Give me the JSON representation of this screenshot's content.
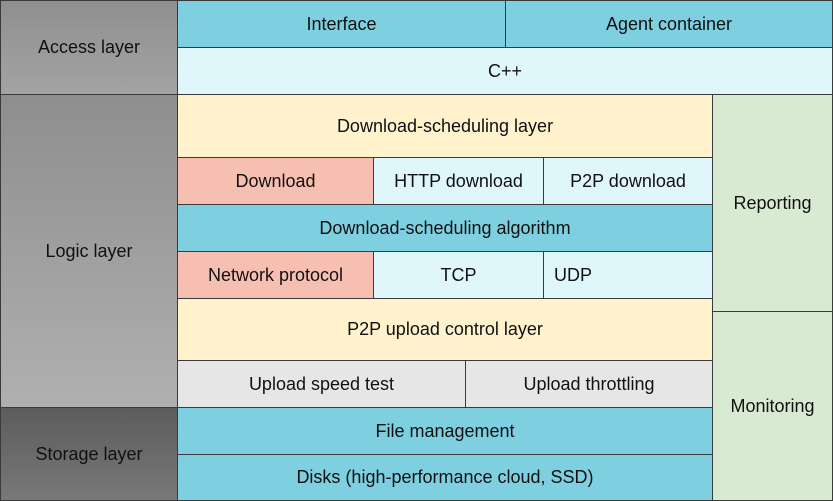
{
  "layers": [
    "Access layer",
    "Logic layer",
    "Storage layer"
  ],
  "blocks": {
    "interface": "Interface",
    "agent_container": "Agent container",
    "cpp": "C++",
    "download_scheduling_layer": "Download-scheduling layer",
    "download": "Download",
    "http_download": "HTTP download",
    "p2p_download": "P2P download",
    "download_scheduling_algorithm": "Download-scheduling algorithm",
    "network_protocol": "Network protocol",
    "tcp": "TCP",
    "udp": "UDP",
    "p2p_upload_control_layer": "P2P upload control layer",
    "upload_speed_test": "Upload speed test",
    "upload_throttling": "Upload throttling",
    "file_management": "File management",
    "disks": "Disks (high-performance cloud, SSD)",
    "reporting": "Reporting",
    "monitoring": "Monitoring"
  }
}
